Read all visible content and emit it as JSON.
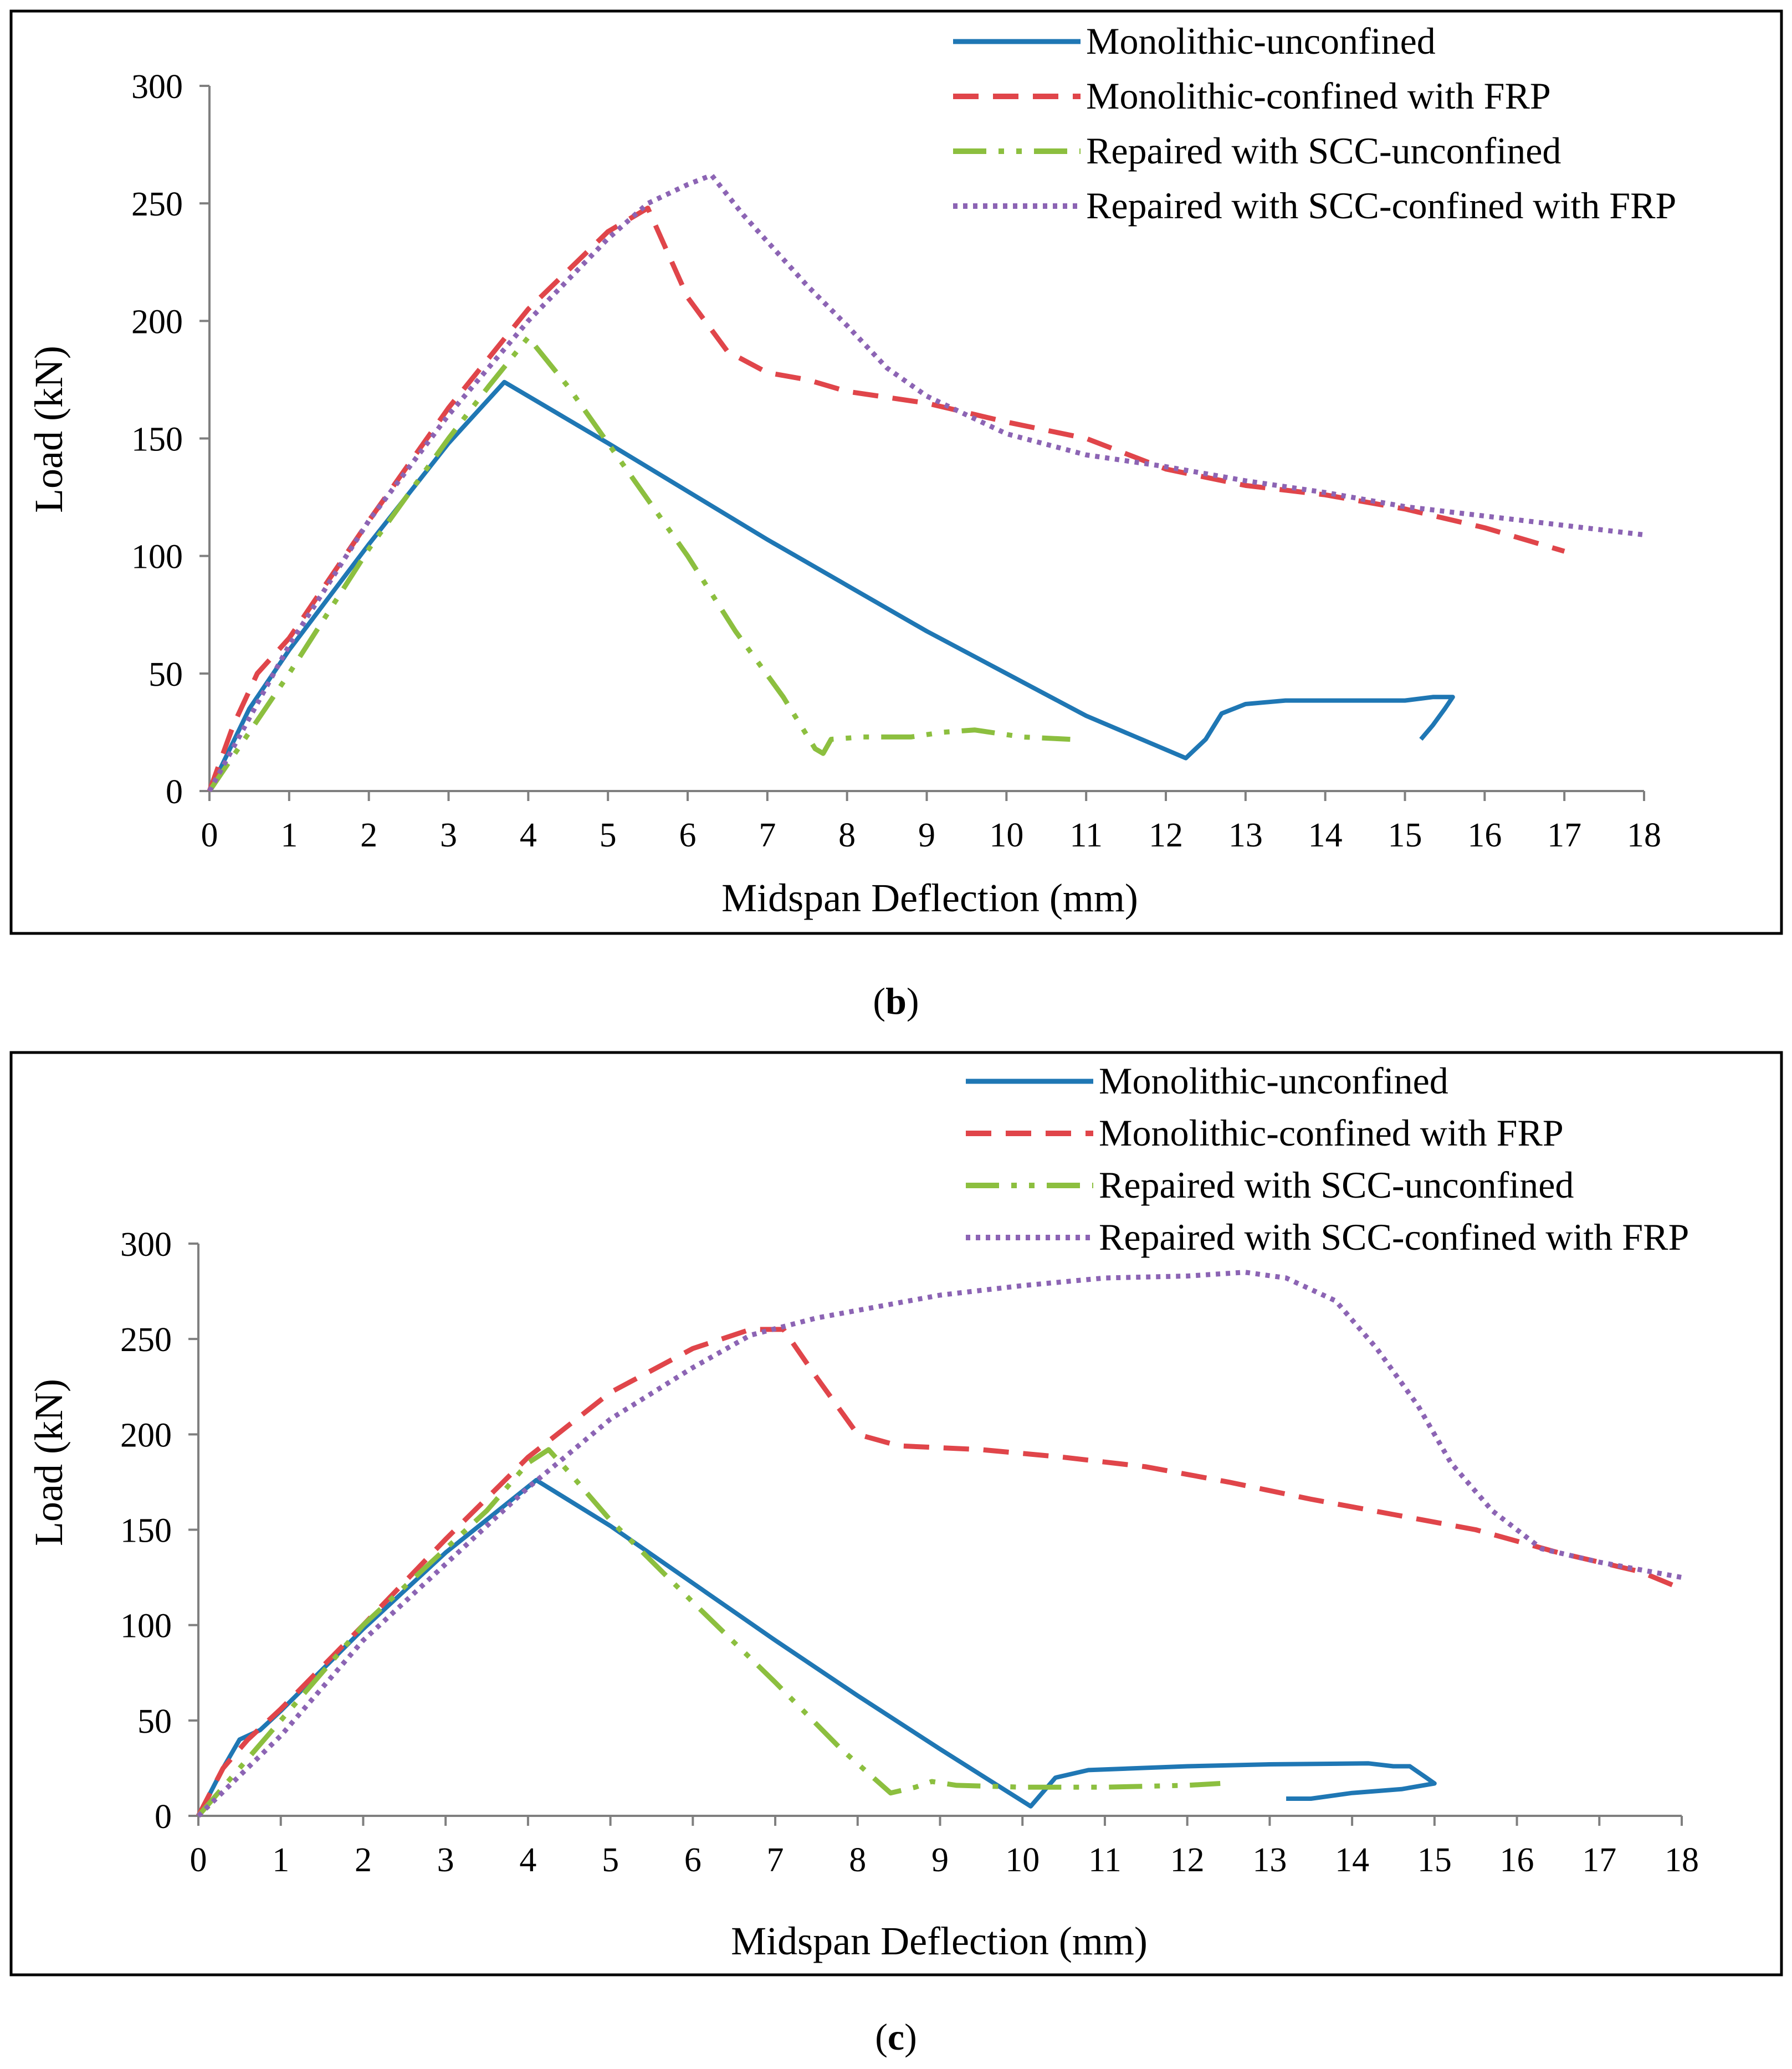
{
  "chart_data": [
    {
      "id": "b",
      "type": "line",
      "caption": {
        "open": "(",
        "letter": "b",
        "close": ")"
      },
      "xlabel": "Midspan Deflection (mm)",
      "ylabel": "Load (kN)",
      "xlim": [
        0,
        18
      ],
      "ylim": [
        0,
        300
      ],
      "xticks": [
        "0",
        "1",
        "2",
        "3",
        "4",
        "5",
        "6",
        "7",
        "8",
        "9",
        "10",
        "11",
        "12",
        "13",
        "14",
        "15",
        "16",
        "17",
        "18"
      ],
      "yticks": [
        "0",
        "50",
        "100",
        "150",
        "200",
        "250",
        "300"
      ],
      "grid": false,
      "legend_position": "top-right",
      "series": [
        {
          "name": "Monolithic-unconfined",
          "color": "#1f77b4",
          "style": "solid",
          "points": [
            [
              0,
              0
            ],
            [
              0.5,
              35
            ],
            [
              1,
              60
            ],
            [
              2,
              105
            ],
            [
              3,
              148
            ],
            [
              3.7,
              174
            ],
            [
              5,
              148
            ],
            [
              7,
              107
            ],
            [
              9,
              68
            ],
            [
              10,
              50
            ],
            [
              11,
              32
            ],
            [
              12.25,
              14
            ],
            [
              12.5,
              22
            ],
            [
              12.7,
              33
            ],
            [
              13,
              37
            ],
            [
              13.5,
              38.5
            ],
            [
              15,
              38.5
            ],
            [
              15.35,
              40
            ],
            [
              15.6,
              40
            ],
            [
              15.5,
              35
            ],
            [
              15.35,
              28
            ],
            [
              15.2,
              22
            ]
          ]
        },
        {
          "name": "Monolithic-confined with FRP",
          "color": "#e0454a",
          "style": "dashed",
          "points": [
            [
              0,
              0
            ],
            [
              0.3,
              28
            ],
            [
              0.6,
              50
            ],
            [
              1,
              65
            ],
            [
              2,
              115
            ],
            [
              3,
              163
            ],
            [
              4,
              205
            ],
            [
              5,
              238
            ],
            [
              5.5,
              248
            ],
            [
              6,
              210
            ],
            [
              6.5,
              187
            ],
            [
              7,
              178
            ],
            [
              7.5,
              175
            ],
            [
              8,
              170
            ],
            [
              9,
              165
            ],
            [
              10,
              157
            ],
            [
              11,
              150
            ],
            [
              12,
              137
            ],
            [
              13,
              130
            ],
            [
              14,
              126
            ],
            [
              15,
              120
            ],
            [
              16,
              112
            ],
            [
              17,
              102
            ]
          ]
        },
        {
          "name": "Repaired with SCC-unconfined",
          "color": "#8cbf3f",
          "style": "dashdotdot",
          "points": [
            [
              0,
              0
            ],
            [
              1,
              50
            ],
            [
              2,
              103
            ],
            [
              3,
              150
            ],
            [
              3.5,
              172
            ],
            [
              4,
              193
            ],
            [
              4.5,
              172
            ],
            [
              5,
              148
            ],
            [
              6,
              100
            ],
            [
              6.6,
              68
            ],
            [
              7.2,
              40
            ],
            [
              7.6,
              18
            ],
            [
              7.7,
              16
            ],
            [
              7.8,
              22
            ],
            [
              8.2,
              23
            ],
            [
              8.8,
              23
            ],
            [
              9.2,
              25
            ],
            [
              9.6,
              26
            ],
            [
              10.2,
              23
            ],
            [
              10.8,
              22
            ]
          ]
        },
        {
          "name": "Repaired with SCC-confined with FRP",
          "color": "#8c64b4",
          "style": "dotted",
          "points": [
            [
              0,
              0
            ],
            [
              1,
              62
            ],
            [
              2,
              115
            ],
            [
              3,
              160
            ],
            [
              4,
              200
            ],
            [
              5,
              235
            ],
            [
              5.5,
              250
            ],
            [
              6,
              258
            ],
            [
              6.3,
              262
            ],
            [
              6.7,
              245
            ],
            [
              7.5,
              215
            ],
            [
              8,
              198
            ],
            [
              8.5,
              180
            ],
            [
              9,
              168
            ],
            [
              10,
              152
            ],
            [
              11,
              143
            ],
            [
              12,
              138
            ],
            [
              13,
              132
            ],
            [
              14,
              127
            ],
            [
              15,
              121
            ],
            [
              16,
              117
            ],
            [
              17,
              113
            ],
            [
              18,
              109
            ]
          ]
        }
      ]
    },
    {
      "id": "c",
      "type": "line",
      "caption": {
        "open": "(",
        "letter": "c",
        "close": ")"
      },
      "xlabel": "Midspan Deflection (mm)",
      "ylabel": "Load (kN)",
      "xlim": [
        0,
        18
      ],
      "ylim": [
        0,
        300
      ],
      "xticks": [
        "0",
        "1",
        "2",
        "3",
        "4",
        "5",
        "6",
        "7",
        "8",
        "9",
        "10",
        "11",
        "12",
        "13",
        "14",
        "15",
        "16",
        "17",
        "18"
      ],
      "yticks": [
        "0",
        "50",
        "100",
        "150",
        "200",
        "250",
        "300"
      ],
      "grid": false,
      "legend_position": "top-right",
      "series": [
        {
          "name": "Monolithic-unconfined",
          "color": "#1f77b4",
          "style": "solid",
          "points": [
            [
              0,
              0
            ],
            [
              0.3,
              25
            ],
            [
              0.5,
              40
            ],
            [
              0.75,
              45
            ],
            [
              1,
              55
            ],
            [
              2,
              98
            ],
            [
              3,
              138
            ],
            [
              4.1,
              176
            ],
            [
              5,
              152
            ],
            [
              6,
              122
            ],
            [
              7,
              92
            ],
            [
              8,
              63
            ],
            [
              9,
              35
            ],
            [
              10.1,
              5
            ],
            [
              10.4,
              20
            ],
            [
              10.8,
              24
            ],
            [
              12,
              26
            ],
            [
              13,
              27
            ],
            [
              14.2,
              27.5
            ],
            [
              14.5,
              26
            ],
            [
              14.7,
              26
            ],
            [
              14.9,
              20
            ],
            [
              15,
              17
            ],
            [
              14.6,
              14
            ],
            [
              14,
              12
            ],
            [
              13.5,
              9
            ],
            [
              13.2,
              9
            ]
          ]
        },
        {
          "name": "Monolithic-confined with FRP",
          "color": "#e0454a",
          "style": "dashed",
          "points": [
            [
              0,
              0
            ],
            [
              0.3,
              25
            ],
            [
              0.6,
              40
            ],
            [
              1,
              56
            ],
            [
              2,
              100
            ],
            [
              3,
              145
            ],
            [
              4,
              188
            ],
            [
              5,
              222
            ],
            [
              6,
              245
            ],
            [
              6.7,
              255
            ],
            [
              7.1,
              255
            ],
            [
              7.5,
              230
            ],
            [
              8,
              200
            ],
            [
              8.5,
              194
            ],
            [
              9.5,
              192
            ],
            [
              10.5,
              188
            ],
            [
              11.5,
              183
            ],
            [
              12.5,
              175
            ],
            [
              13.5,
              166
            ],
            [
              14.5,
              158
            ],
            [
              15.5,
              150
            ],
            [
              16.5,
              138
            ],
            [
              17.5,
              128
            ],
            [
              18,
              119
            ]
          ]
        },
        {
          "name": "Repaired with SCC-unconfined",
          "color": "#8cbf3f",
          "style": "dashdotdot",
          "points": [
            [
              0,
              0
            ],
            [
              1,
              50
            ],
            [
              2,
              100
            ],
            [
              3,
              140
            ],
            [
              3.5,
              160
            ],
            [
              4,
              185
            ],
            [
              4.25,
              192
            ],
            [
              4.5,
              180
            ],
            [
              5,
              155
            ],
            [
              6,
              112
            ],
            [
              7,
              70
            ],
            [
              7.8,
              35
            ],
            [
              8.4,
              12
            ],
            [
              8.7,
              15
            ],
            [
              8.9,
              18
            ],
            [
              9.2,
              16
            ],
            [
              10,
              15
            ],
            [
              11,
              15
            ],
            [
              12,
              16
            ],
            [
              12.4,
              17
            ]
          ]
        },
        {
          "name": "Repaired with SCC-confined with FRP",
          "color": "#8c64b4",
          "style": "dotted",
          "points": [
            [
              0,
              0
            ],
            [
              1,
              42
            ],
            [
              2,
              92
            ],
            [
              3,
              132
            ],
            [
              4,
              172
            ],
            [
              5,
              208
            ],
            [
              6,
              235
            ],
            [
              6.7,
              252
            ],
            [
              7.5,
              261
            ],
            [
              8,
              265
            ],
            [
              9,
              273
            ],
            [
              10,
              278
            ],
            [
              11,
              282
            ],
            [
              12,
              283
            ],
            [
              12.7,
              285
            ],
            [
              13.2,
              282
            ],
            [
              13.8,
              270
            ],
            [
              14.3,
              245
            ],
            [
              14.8,
              215
            ],
            [
              15.2,
              185
            ],
            [
              15.7,
              160
            ],
            [
              16.3,
              140
            ],
            [
              17,
              133
            ],
            [
              18,
              125
            ]
          ]
        }
      ]
    }
  ]
}
